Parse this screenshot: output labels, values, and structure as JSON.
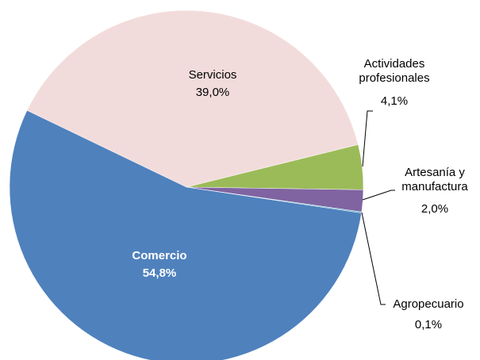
{
  "chart_data": {
    "type": "pie",
    "categories": [
      "Servicios",
      "Actividades profesionales",
      "Artesanía y manufactura",
      "Agropecuario",
      "Comercio"
    ],
    "values": [
      39.0,
      4.1,
      2.0,
      0.1,
      54.8
    ],
    "value_labels": [
      "39,0%",
      "4,1%",
      "2,0%",
      "0,1%",
      "54,8%"
    ],
    "colors": [
      "#f2dcdb",
      "#9bbb59",
      "#8064a2",
      "#4bacc6",
      "#4f81bd"
    ]
  }
}
